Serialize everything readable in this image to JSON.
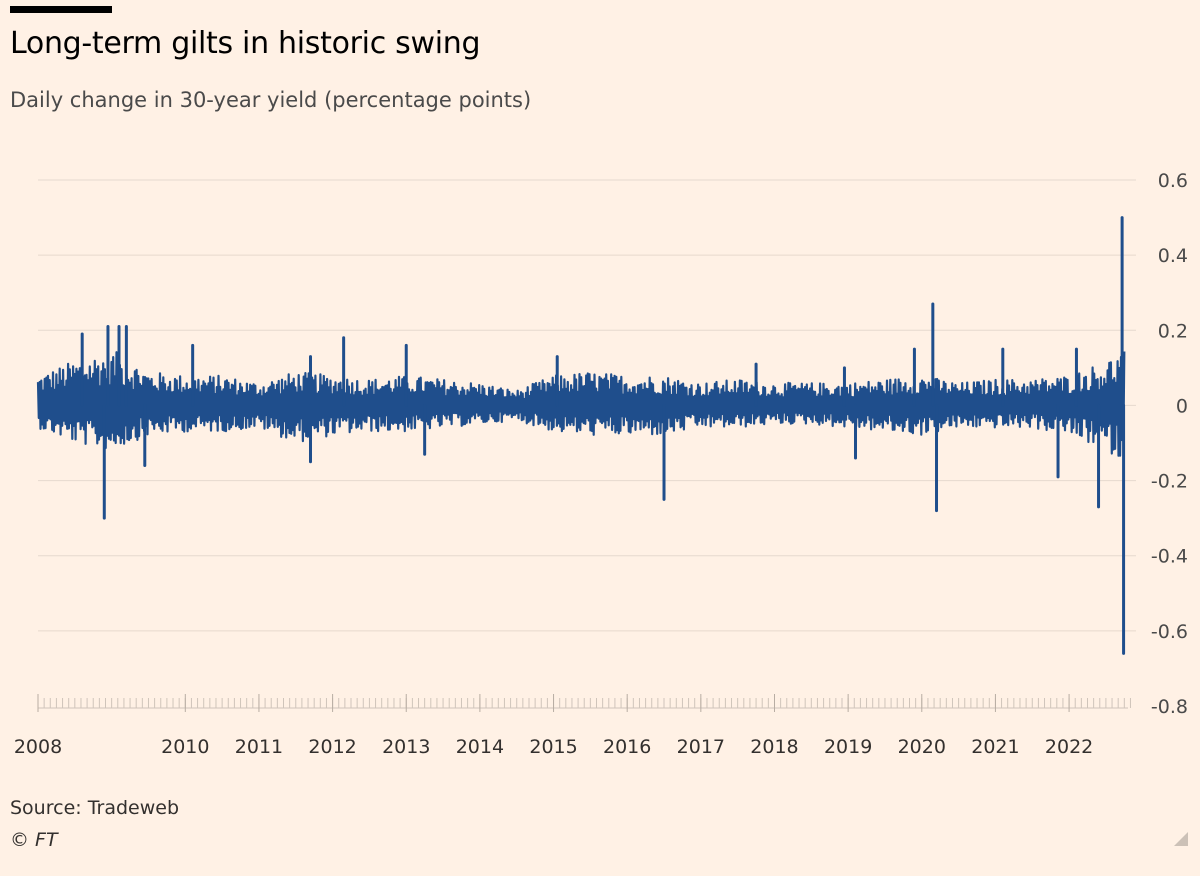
{
  "colors": {
    "background": "#FFF1E5",
    "series": "#1F4E8C",
    "grid": "#E6D9CE",
    "text": "#33302E"
  },
  "header": {
    "title": "Long-term gilts in historic swing",
    "subtitle": "Daily change in 30-year yield (percentage points)"
  },
  "footer": {
    "source": "Source: Tradeweb",
    "copyright": "© FT"
  },
  "chart_data": {
    "type": "area",
    "title": "Long-term gilts in historic swing",
    "subtitle": "Daily change in 30-year yield (percentage points)",
    "xlabel": "",
    "ylabel": "",
    "xlim": [
      2008.0,
      2022.8
    ],
    "ylim": [
      -0.8,
      0.6
    ],
    "yticks": [
      0.6,
      0.4,
      0.2,
      0,
      -0.2,
      -0.4,
      -0.6,
      -0.8
    ],
    "ytick_labels": [
      "0.6",
      "0.4",
      "0.2",
      "0",
      "-0.2",
      "-0.4",
      "-0.6",
      "-0.8"
    ],
    "xticks": [
      2008,
      2010,
      2011,
      2012,
      2013,
      2014,
      2015,
      2016,
      2017,
      2018,
      2019,
      2020,
      2021,
      2022
    ],
    "xtick_labels": [
      "2008",
      "2010",
      "2011",
      "2012",
      "2013",
      "2014",
      "2015",
      "2016",
      "2017",
      "2018",
      "2019",
      "2020",
      "2021",
      "2022"
    ],
    "grid": true,
    "axis_side": "right",
    "volatility_envelope": {
      "description": "Approximate typical daily high/low band by year",
      "x": [
        2008.0,
        2008.5,
        2009.0,
        2009.5,
        2010.0,
        2010.5,
        2011.0,
        2011.5,
        2012.0,
        2012.5,
        2013.0,
        2013.5,
        2014.0,
        2014.5,
        2015.0,
        2015.5,
        2016.0,
        2016.5,
        2017.0,
        2017.5,
        2018.0,
        2018.5,
        2019.0,
        2019.5,
        2020.0,
        2020.5,
        2021.0,
        2021.5,
        2022.0,
        2022.5,
        2022.75
      ],
      "high": [
        0.08,
        0.12,
        0.15,
        0.09,
        0.08,
        0.08,
        0.06,
        0.09,
        0.08,
        0.07,
        0.08,
        0.07,
        0.06,
        0.04,
        0.08,
        0.09,
        0.08,
        0.08,
        0.06,
        0.07,
        0.06,
        0.06,
        0.06,
        0.07,
        0.08,
        0.06,
        0.07,
        0.07,
        0.08,
        0.12,
        0.15
      ],
      "low": [
        -0.06,
        -0.1,
        -0.12,
        -0.08,
        -0.07,
        -0.07,
        -0.06,
        -0.1,
        -0.08,
        -0.07,
        -0.07,
        -0.06,
        -0.05,
        -0.04,
        -0.07,
        -0.08,
        -0.08,
        -0.08,
        -0.06,
        -0.06,
        -0.05,
        -0.05,
        -0.06,
        -0.07,
        -0.08,
        -0.06,
        -0.06,
        -0.06,
        -0.08,
        -0.12,
        -0.15
      ]
    },
    "notable_moves": [
      {
        "x": 2008.6,
        "value": 0.19
      },
      {
        "x": 2008.95,
        "value": 0.21
      },
      {
        "x": 2009.1,
        "value": 0.21
      },
      {
        "x": 2009.2,
        "value": 0.21
      },
      {
        "x": 2008.9,
        "value": -0.3
      },
      {
        "x": 2009.45,
        "value": -0.16
      },
      {
        "x": 2010.1,
        "value": 0.16
      },
      {
        "x": 2011.7,
        "value": 0.13
      },
      {
        "x": 2011.7,
        "value": -0.15
      },
      {
        "x": 2012.15,
        "value": 0.18
      },
      {
        "x": 2013.0,
        "value": 0.16
      },
      {
        "x": 2013.25,
        "value": -0.13
      },
      {
        "x": 2015.05,
        "value": 0.13
      },
      {
        "x": 2016.5,
        "value": -0.25
      },
      {
        "x": 2017.75,
        "value": 0.11
      },
      {
        "x": 2018.95,
        "value": 0.1
      },
      {
        "x": 2019.1,
        "value": -0.14
      },
      {
        "x": 2019.9,
        "value": 0.15
      },
      {
        "x": 2020.15,
        "value": 0.27
      },
      {
        "x": 2020.2,
        "value": -0.28
      },
      {
        "x": 2021.1,
        "value": 0.15
      },
      {
        "x": 2021.85,
        "value": -0.19
      },
      {
        "x": 2022.1,
        "value": 0.15
      },
      {
        "x": 2022.4,
        "value": -0.27
      },
      {
        "x": 2022.72,
        "value": 0.5
      },
      {
        "x": 2022.74,
        "value": -0.66
      }
    ]
  }
}
